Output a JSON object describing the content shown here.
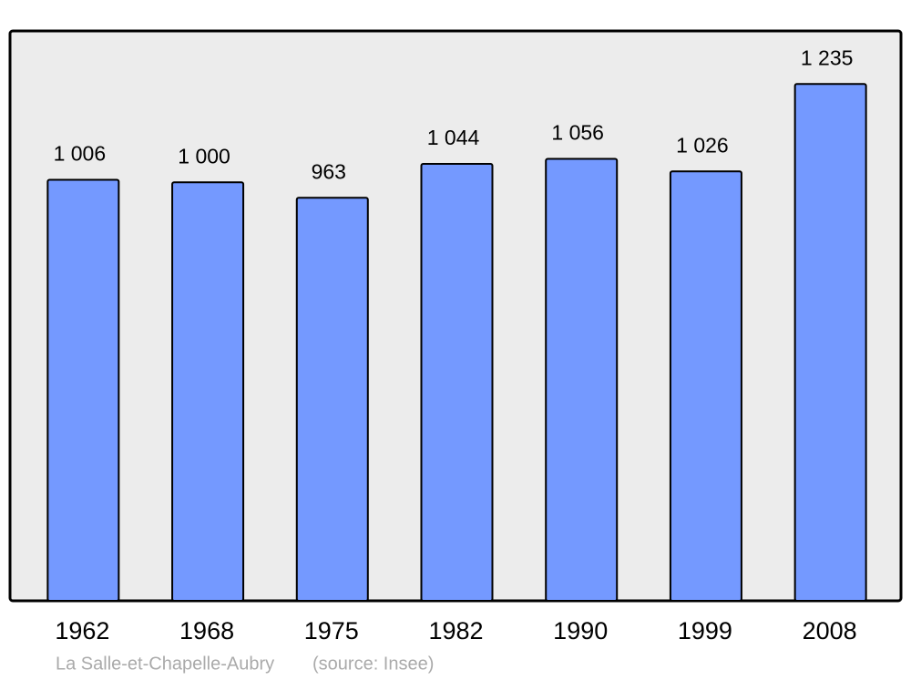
{
  "chart_data": {
    "type": "bar",
    "categories": [
      "1962",
      "1968",
      "1975",
      "1982",
      "1990",
      "1999",
      "2008"
    ],
    "values": [
      1006,
      1000,
      963,
      1044,
      1056,
      1026,
      1235
    ],
    "value_labels": [
      "1 006",
      "1 000",
      "963",
      "1 044",
      "1 056",
      "1 026",
      "1 235"
    ],
    "color": "#7499ff",
    "caption": "La Salle-et-Chapelle-Aubry",
    "source": "(source: Insee)"
  }
}
